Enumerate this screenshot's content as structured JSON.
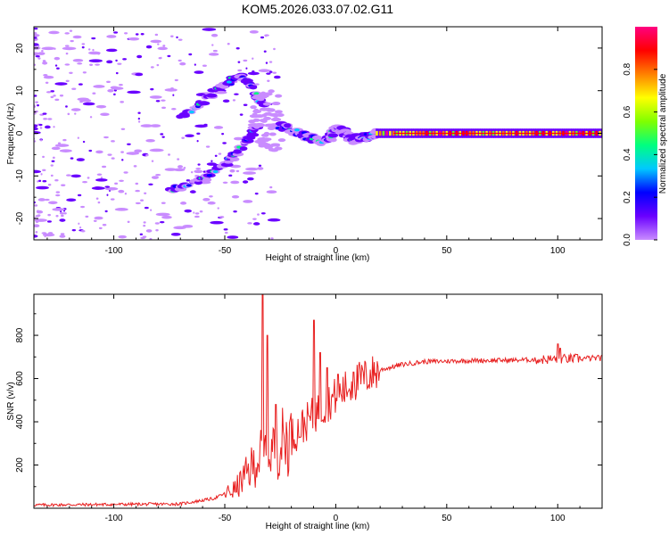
{
  "title": "KOM5.2026.033.07.02.G11",
  "chart_data": [
    {
      "type": "heatmap",
      "xlabel": "Height of straight line (km)",
      "ylabel": "Frequency (Hz)",
      "xlim": [
        -136,
        120
      ],
      "ylim": [
        -25,
        25
      ],
      "xticks": [
        -100,
        -50,
        0,
        50,
        100
      ],
      "yticks": [
        -20,
        -10,
        0,
        10,
        20
      ],
      "colorbar": {
        "label": "Normalized spectral amplitude",
        "range": [
          0,
          1
        ],
        "ticks": [
          0.0,
          0.2,
          0.4,
          0.6,
          0.8
        ],
        "colors": [
          "#c98cff",
          "#6a00ff",
          "#0000ff",
          "#00c8ff",
          "#00ff80",
          "#80ff00",
          "#ffff00",
          "#ff8000",
          "#ff0000",
          "#ff0080"
        ]
      },
      "features": {
        "steady_band": {
          "freq": 0,
          "x_from": 18,
          "x_to": 120,
          "amp": 0.8
        },
        "arc_upper": [
          [
            -70,
            3.5
          ],
          [
            -60,
            7.5
          ],
          [
            -50,
            11.5
          ],
          [
            -43,
            13.5
          ],
          [
            -38,
            11
          ],
          [
            -33,
            6
          ]
        ],
        "arc_lower": [
          [
            -75,
            -13.5
          ],
          [
            -62,
            -11.5
          ],
          [
            -52,
            -8
          ],
          [
            -45,
            -5
          ],
          [
            -40,
            -2
          ],
          [
            -35,
            2
          ]
        ],
        "wiggle": [
          [
            -28,
            2
          ],
          [
            -20,
            1
          ],
          [
            -12,
            -1
          ],
          [
            -6,
            -2
          ],
          [
            -2,
            -1
          ],
          [
            0,
            1.5
          ],
          [
            4,
            0
          ],
          [
            8,
            -1.5
          ],
          [
            12,
            -1
          ],
          [
            18,
            0
          ]
        ]
      }
    },
    {
      "type": "line",
      "xlabel": "Height of straight line (km)",
      "ylabel": "SNR (v/v)",
      "xlim": [
        -136,
        120
      ],
      "ylim": [
        0,
        990
      ],
      "xticks": [
        -100,
        -50,
        0,
        50,
        100
      ],
      "yticks": [
        200,
        400,
        600,
        800
      ],
      "line_color": "#e82020",
      "envelope": [
        [
          -136,
          15
        ],
        [
          -70,
          20
        ],
        [
          -55,
          45
        ],
        [
          -45,
          90
        ],
        [
          -40,
          160
        ],
        [
          -35,
          230
        ],
        [
          -30,
          270
        ],
        [
          -20,
          330
        ],
        [
          -10,
          430
        ],
        [
          0,
          520
        ],
        [
          10,
          590
        ],
        [
          20,
          640
        ],
        [
          30,
          665
        ],
        [
          40,
          678
        ],
        [
          60,
          683
        ],
        [
          80,
          685
        ],
        [
          100,
          690
        ],
        [
          120,
          695
        ]
      ],
      "spikes": [
        [
          -33,
          990
        ],
        [
          -31,
          800
        ],
        [
          -27,
          480
        ],
        [
          -10,
          870
        ],
        [
          -7,
          720
        ],
        [
          -4,
          650
        ],
        [
          1,
          620
        ],
        [
          8,
          630
        ],
        [
          100,
          760
        ],
        [
          101,
          740
        ]
      ]
    }
  ]
}
